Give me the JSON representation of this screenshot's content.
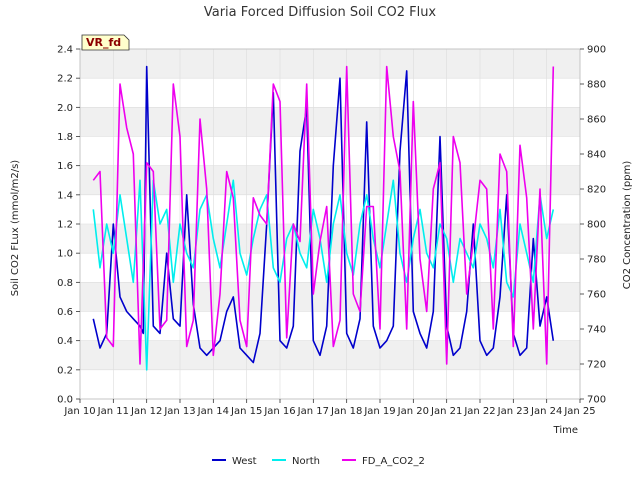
{
  "chart_data": {
    "type": "line",
    "title": "Varia Forced Diffusion Soil CO2 Flux",
    "badge": "VR_fd",
    "xlabel": "Time",
    "ylabel": "Soil CO2 FLux (mmol/m2/s)",
    "y2label": "CO2 Concentration (ppm)",
    "xlim": [
      10,
      25
    ],
    "ylim": [
      0.0,
      2.4
    ],
    "y2lim": [
      700,
      900
    ],
    "xticks": [
      {
        "v": 10,
        "label": "Jan 10"
      },
      {
        "v": 11,
        "label": "Jan 11"
      },
      {
        "v": 12,
        "label": "Jan 12"
      },
      {
        "v": 13,
        "label": "Jan 13"
      },
      {
        "v": 14,
        "label": "Jan 14"
      },
      {
        "v": 15,
        "label": "Jan 15"
      },
      {
        "v": 16,
        "label": "Jan 16"
      },
      {
        "v": 17,
        "label": "Jan 17"
      },
      {
        "v": 18,
        "label": "Jan 18"
      },
      {
        "v": 19,
        "label": "Jan 19"
      },
      {
        "v": 20,
        "label": "Jan 20"
      },
      {
        "v": 21,
        "label": "Jan 21"
      },
      {
        "v": 22,
        "label": "Jan 22"
      },
      {
        "v": 23,
        "label": "Jan 23"
      },
      {
        "v": 24,
        "label": "Jan 24"
      },
      {
        "v": 25,
        "label": "Jan 25"
      }
    ],
    "yticks": [
      "0.0",
      "0.2",
      "0.4",
      "0.6",
      "0.8",
      "1.0",
      "1.2",
      "1.4",
      "1.6",
      "1.8",
      "2.0",
      "2.2",
      "2.4"
    ],
    "y2ticks": [
      "700",
      "720",
      "740",
      "760",
      "780",
      "800",
      "820",
      "840",
      "860",
      "880",
      "900"
    ],
    "grid": true,
    "legend": "bottom-center",
    "series": [
      {
        "name": "West",
        "color": "#0000cc",
        "axis": "left",
        "x": [
          10.4,
          10.6,
          10.8,
          11.0,
          11.2,
          11.4,
          11.6,
          11.8,
          11.9,
          12.0,
          12.2,
          12.4,
          12.6,
          12.8,
          13.0,
          13.2,
          13.4,
          13.6,
          13.8,
          14.0,
          14.2,
          14.4,
          14.6,
          14.8,
          15.0,
          15.2,
          15.4,
          15.6,
          15.8,
          16.0,
          16.2,
          16.4,
          16.6,
          16.8,
          17.0,
          17.2,
          17.4,
          17.6,
          17.8,
          18.0,
          18.2,
          18.4,
          18.6,
          18.8,
          19.0,
          19.2,
          19.4,
          19.6,
          19.8,
          20.0,
          20.2,
          20.4,
          20.6,
          20.8,
          21.0,
          21.2,
          21.4,
          21.6,
          21.8,
          22.0,
          22.2,
          22.4,
          22.6,
          22.8,
          23.0,
          23.2,
          23.4,
          23.6,
          23.8,
          24.0,
          24.2
        ],
        "y": [
          0.55,
          0.35,
          0.45,
          1.2,
          0.7,
          0.6,
          0.55,
          0.5,
          0.45,
          2.28,
          0.5,
          0.45,
          1.0,
          0.55,
          0.5,
          1.4,
          0.65,
          0.35,
          0.3,
          0.35,
          0.4,
          0.6,
          0.7,
          0.35,
          0.3,
          0.25,
          0.45,
          1.2,
          2.1,
          0.4,
          0.35,
          0.5,
          1.7,
          2.0,
          0.4,
          0.3,
          0.5,
          1.6,
          2.2,
          0.45,
          0.35,
          0.55,
          1.9,
          0.5,
          0.35,
          0.4,
          0.5,
          1.7,
          2.25,
          0.6,
          0.45,
          0.35,
          0.6,
          1.8,
          0.5,
          0.3,
          0.35,
          0.6,
          1.2,
          0.4,
          0.3,
          0.35,
          0.7,
          1.4,
          0.45,
          0.3,
          0.35,
          1.1,
          0.5,
          0.7,
          0.4
        ]
      },
      {
        "name": "North",
        "color": "#00eeee",
        "axis": "left",
        "x": [
          10.4,
          10.6,
          10.8,
          11.0,
          11.2,
          11.4,
          11.6,
          11.8,
          12.0,
          12.2,
          12.4,
          12.6,
          12.8,
          13.0,
          13.2,
          13.4,
          13.6,
          13.8,
          14.0,
          14.2,
          14.4,
          14.6,
          14.8,
          15.0,
          15.2,
          15.4,
          15.6,
          15.8,
          16.0,
          16.2,
          16.4,
          16.6,
          16.8,
          17.0,
          17.2,
          17.4,
          17.6,
          17.8,
          18.0,
          18.2,
          18.4,
          18.6,
          18.8,
          19.0,
          19.2,
          19.4,
          19.6,
          19.8,
          20.0,
          20.2,
          20.4,
          20.6,
          20.8,
          21.0,
          21.2,
          21.4,
          21.6,
          21.8,
          22.0,
          22.2,
          22.4,
          22.6,
          22.8,
          23.0,
          23.2,
          23.4,
          23.6,
          23.8,
          24.0,
          24.2
        ],
        "y": [
          1.3,
          0.9,
          1.2,
          1.0,
          1.4,
          1.1,
          0.8,
          1.5,
          0.2,
          1.5,
          1.2,
          1.3,
          0.8,
          1.2,
          1.0,
          0.9,
          1.3,
          1.4,
          1.1,
          0.9,
          1.2,
          1.5,
          1.0,
          0.85,
          1.1,
          1.3,
          1.4,
          0.9,
          0.8,
          1.1,
          1.2,
          1.0,
          0.9,
          1.3,
          1.1,
          0.8,
          1.2,
          1.4,
          1.0,
          0.85,
          1.2,
          1.4,
          1.1,
          0.9,
          1.2,
          1.5,
          1.0,
          0.8,
          1.1,
          1.3,
          1.0,
          0.9,
          1.2,
          1.1,
          0.8,
          1.1,
          1.0,
          0.9,
          1.2,
          1.1,
          0.9,
          1.3,
          0.8,
          0.7,
          1.2,
          1.0,
          0.8,
          1.4,
          1.1,
          1.3
        ]
      },
      {
        "name": "FD_A_CO2_2",
        "color": "#ee00ee",
        "axis": "right",
        "x": [
          10.4,
          10.6,
          10.8,
          11.0,
          11.2,
          11.4,
          11.6,
          11.8,
          12.0,
          12.2,
          12.4,
          12.6,
          12.8,
          13.0,
          13.2,
          13.4,
          13.6,
          13.8,
          14.0,
          14.2,
          14.4,
          14.6,
          14.8,
          15.0,
          15.2,
          15.4,
          15.6,
          15.8,
          16.0,
          16.2,
          16.4,
          16.6,
          16.8,
          17.0,
          17.2,
          17.4,
          17.6,
          17.8,
          18.0,
          18.2,
          18.4,
          18.6,
          18.8,
          19.0,
          19.2,
          19.4,
          19.6,
          19.8,
          20.0,
          20.2,
          20.4,
          20.6,
          20.8,
          21.0,
          21.2,
          21.4,
          21.6,
          21.8,
          22.0,
          22.2,
          22.4,
          22.6,
          22.8,
          23.0,
          23.2,
          23.4,
          23.6,
          23.8,
          24.0,
          24.2
        ],
        "y": [
          825,
          830,
          735,
          730,
          880,
          855,
          840,
          720,
          835,
          830,
          740,
          745,
          880,
          850,
          730,
          745,
          860,
          820,
          725,
          760,
          830,
          815,
          745,
          730,
          815,
          805,
          800,
          880,
          870,
          735,
          800,
          790,
          880,
          760,
          790,
          810,
          730,
          745,
          890,
          760,
          750,
          810,
          810,
          740,
          890,
          850,
          830,
          740,
          870,
          780,
          750,
          820,
          835,
          720,
          850,
          835,
          760,
          790,
          825,
          820,
          740,
          840,
          830,
          730,
          845,
          815,
          740,
          820,
          720,
          890
        ]
      }
    ]
  }
}
